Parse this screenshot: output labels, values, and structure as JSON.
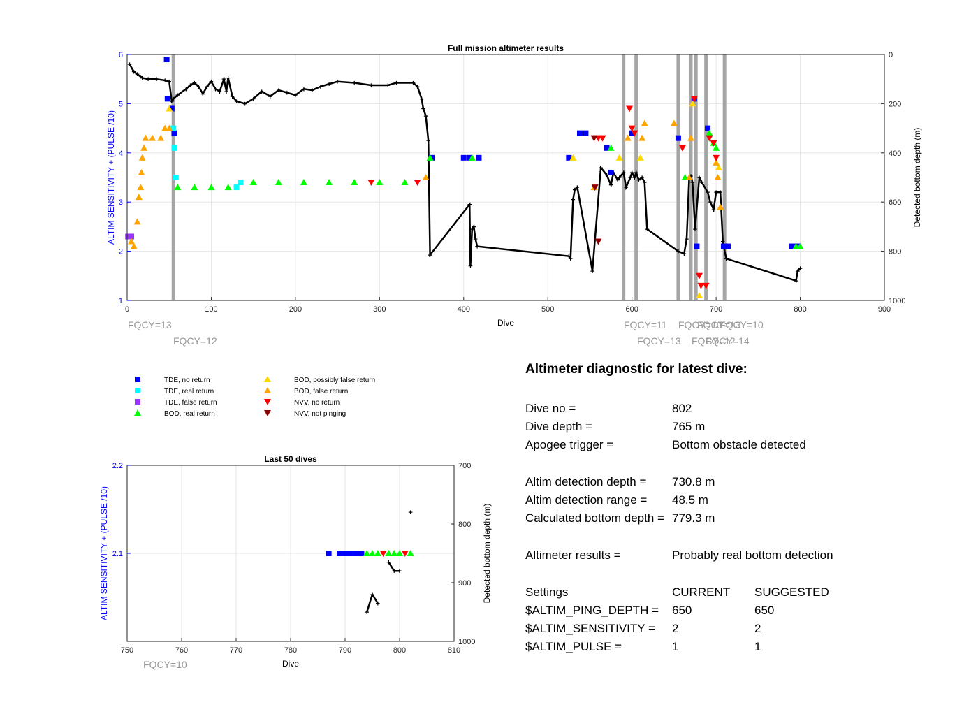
{
  "colors": {
    "left_axis": "#0000ff",
    "fqcy_label": "#999999",
    "vline": "#a6a6a6",
    "depth_line": "#000000",
    "tde_no_return": "#0000ff",
    "tde_real_return": "#00ffff",
    "tde_false_return": "#9933ff",
    "bod_real_return": "#00ff00",
    "bod_possibly_false": "#ffd700",
    "bod_false_return": "#ffa500",
    "nvv_no_return": "#ff0000",
    "nvv_not_pinging": "#8b0000"
  },
  "chart_data": [
    {
      "type": "scatter",
      "title": "Full mission altimeter results",
      "xlabel": "Dive",
      "ylabel": "ALTIM SENSITIVITY + (PULSE /10)",
      "y2label": "Detected bottom depth (m)",
      "xlim": [
        0,
        900
      ],
      "ylim": [
        1,
        6
      ],
      "y2lim": [
        1000,
        0
      ],
      "xticks": [
        0,
        100,
        200,
        300,
        400,
        500,
        600,
        700,
        800,
        900
      ],
      "yticks": [
        1,
        2,
        3,
        4,
        5,
        6
      ],
      "y2ticks": [
        0,
        200,
        400,
        600,
        800,
        1000
      ],
      "grid": true,
      "settings_changes": [
        {
          "x": 55,
          "label": "FQCY=13"
        },
        {
          "x": 55,
          "label": "FQCY=12"
        },
        {
          "x": 590,
          "label": "FQCY=11"
        },
        {
          "x": 605,
          "label": "FQCY=13"
        },
        {
          "x": 655,
          "label": "FQCY=10"
        },
        {
          "x": 670,
          "label": "FQCY=12"
        },
        {
          "x": 688,
          "label": "FQCY=13"
        },
        {
          "x": 710,
          "label": "FQCY=14"
        },
        {
          "x": 697,
          "label": "FQCY=10"
        }
      ],
      "vlines": [
        55,
        590,
        605,
        655,
        670,
        676,
        688,
        710
      ],
      "series": [
        {
          "name": "TDE, no return",
          "marker": "square",
          "points": [
            [
              47,
              5.9
            ],
            [
              48,
              5.1
            ],
            [
              53,
              4.9
            ],
            [
              56,
              4.4
            ],
            [
              400,
              3.9
            ],
            [
              407,
              3.9
            ],
            [
              418,
              3.9
            ],
            [
              362,
              3.9
            ],
            [
              525,
              3.9
            ],
            [
              538,
              4.4
            ],
            [
              545,
              4.4
            ],
            [
              570,
              4.1
            ],
            [
              575,
              3.6
            ],
            [
              600,
              4.4
            ],
            [
              655,
              4.3
            ],
            [
              674,
              5.1
            ],
            [
              677,
              2.1
            ],
            [
              690,
              4.5
            ],
            [
              709,
              2.1
            ],
            [
              714,
              2.1
            ],
            [
              790,
              2.1
            ],
            [
              795,
              2.1
            ],
            [
              797,
              2.1
            ]
          ]
        },
        {
          "name": "TDE, real return",
          "marker": "square",
          "points": [
            [
              55,
              4.5
            ],
            [
              56,
              4.1
            ],
            [
              58,
              3.5
            ],
            [
              130,
              3.3
            ],
            [
              135,
              3.4
            ]
          ]
        },
        {
          "name": "TDE, false return",
          "marker": "square",
          "points": [
            [
              1,
              2.3
            ],
            [
              5,
              2.3
            ]
          ]
        },
        {
          "name": "BOD, real return",
          "marker": "triangle-up",
          "points": [
            [
              60,
              3.3
            ],
            [
              80,
              3.3
            ],
            [
              100,
              3.3
            ],
            [
              120,
              3.3
            ],
            [
              150,
              3.4
            ],
            [
              180,
              3.4
            ],
            [
              210,
              3.4
            ],
            [
              240,
              3.4
            ],
            [
              270,
              3.4
            ],
            [
              300,
              3.4
            ],
            [
              330,
              3.4
            ],
            [
              360,
              3.9
            ],
            [
              410,
              3.9
            ],
            [
              575,
              4.1
            ],
            [
              663,
              3.5
            ],
            [
              692,
              4.4
            ],
            [
              697,
              4.2
            ],
            [
              700,
              4.1
            ],
            [
              795,
              2.1
            ],
            [
              800,
              2.1
            ]
          ]
        },
        {
          "name": "BOD, possibly false return",
          "marker": "triangle-up",
          "points": [
            [
              50,
              4.9
            ],
            [
              530,
              3.9
            ],
            [
              585,
              3.9
            ],
            [
              610,
              3.9
            ],
            [
              672,
              5.0
            ],
            [
              703,
              3.7
            ],
            [
              680,
              1.1
            ]
          ]
        },
        {
          "name": "BOD, false return",
          "marker": "triangle-up",
          "points": [
            [
              5,
              2.2
            ],
            [
              8,
              2.1
            ],
            [
              12,
              2.6
            ],
            [
              14,
              3.1
            ],
            [
              16,
              3.3
            ],
            [
              17,
              3.6
            ],
            [
              18,
              3.9
            ],
            [
              20,
              4.1
            ],
            [
              22,
              4.3
            ],
            [
              30,
              4.3
            ],
            [
              40,
              4.3
            ],
            [
              45,
              4.5
            ],
            [
              50,
              4.5
            ],
            [
              355,
              3.5
            ],
            [
              555,
              3.3
            ],
            [
              595,
              4.3
            ],
            [
              612,
              4.3
            ],
            [
              615,
              4.6
            ],
            [
              650,
              4.6
            ],
            [
              668,
              3.5
            ],
            [
              670,
              4.3
            ],
            [
              700,
              3.8
            ],
            [
              705,
              2.9
            ],
            [
              702,
              3.5
            ]
          ]
        },
        {
          "name": "NVV, no return",
          "marker": "triangle-down",
          "points": [
            [
              290,
              3.4
            ],
            [
              345,
              3.4
            ],
            [
              560,
              4.3
            ],
            [
              565,
              4.3
            ],
            [
              597,
              4.9
            ],
            [
              600,
              4.5
            ],
            [
              603,
              4.4
            ],
            [
              660,
              4.1
            ],
            [
              674,
              5.1
            ],
            [
              680,
              1.5
            ],
            [
              682,
              1.3
            ],
            [
              688,
              1.3
            ],
            [
              692,
              4.3
            ],
            [
              697,
              4.2
            ],
            [
              700,
              3.9
            ]
          ]
        },
        {
          "name": "NVV, not pinging",
          "marker": "triangle-down",
          "points": [
            [
              555,
              4.3
            ],
            [
              560,
              2.2
            ],
            [
              556,
              3.3
            ]
          ]
        }
      ],
      "bottom_depth": [
        [
          3,
          40
        ],
        [
          8,
          70
        ],
        [
          12,
          80
        ],
        [
          18,
          95
        ],
        [
          25,
          100
        ],
        [
          35,
          100
        ],
        [
          45,
          105
        ],
        [
          50,
          110
        ],
        [
          53,
          190
        ],
        [
          55,
          180
        ],
        [
          60,
          165
        ],
        [
          70,
          140
        ],
        [
          75,
          125
        ],
        [
          80,
          115
        ],
        [
          85,
          130
        ],
        [
          90,
          160
        ],
        [
          95,
          130
        ],
        [
          100,
          110
        ],
        [
          105,
          140
        ],
        [
          110,
          150
        ],
        [
          115,
          100
        ],
        [
          118,
          150
        ],
        [
          120,
          95
        ],
        [
          125,
          170
        ],
        [
          130,
          190
        ],
        [
          140,
          200
        ],
        [
          150,
          180
        ],
        [
          160,
          150
        ],
        [
          170,
          170
        ],
        [
          180,
          145
        ],
        [
          190,
          155
        ],
        [
          200,
          165
        ],
        [
          210,
          140
        ],
        [
          220,
          145
        ],
        [
          230,
          130
        ],
        [
          240,
          120
        ],
        [
          250,
          110
        ],
        [
          270,
          115
        ],
        [
          290,
          125
        ],
        [
          310,
          125
        ],
        [
          320,
          115
        ],
        [
          340,
          115
        ],
        [
          345,
          130
        ],
        [
          350,
          180
        ],
        [
          352,
          220
        ],
        [
          355,
          250
        ],
        [
          358,
          350
        ],
        [
          360,
          815
        ],
        [
          407,
          610
        ],
        [
          408,
          860
        ],
        [
          410,
          710
        ],
        [
          412,
          700
        ],
        [
          414,
          750
        ],
        [
          416,
          780
        ],
        [
          525,
          820
        ],
        [
          527,
          830
        ],
        [
          530,
          590
        ],
        [
          532,
          550
        ],
        [
          535,
          540
        ],
        [
          553,
          880
        ],
        [
          563,
          460
        ],
        [
          570,
          490
        ],
        [
          575,
          530
        ],
        [
          578,
          480
        ],
        [
          583,
          510
        ],
        [
          585,
          500
        ],
        [
          590,
          480
        ],
        [
          593,
          540
        ],
        [
          598,
          500
        ],
        [
          600,
          480
        ],
        [
          603,
          500
        ],
        [
          605,
          480
        ],
        [
          608,
          510
        ],
        [
          612,
          500
        ],
        [
          615,
          520
        ],
        [
          618,
          710
        ],
        [
          655,
          800
        ],
        [
          662,
          810
        ],
        [
          665,
          750
        ],
        [
          668,
          500
        ],
        [
          670,
          495
        ],
        [
          672,
          520
        ],
        [
          675,
          710
        ],
        [
          680,
          500
        ],
        [
          683,
          520
        ],
        [
          690,
          560
        ],
        [
          693,
          600
        ],
        [
          697,
          630
        ],
        [
          700,
          560
        ],
        [
          705,
          560
        ],
        [
          708,
          760
        ],
        [
          712,
          830
        ],
        [
          795,
          920
        ],
        [
          797,
          880
        ],
        [
          800,
          870
        ]
      ]
    },
    {
      "type": "scatter",
      "title": "Last 50 dives",
      "xlabel": "Dive",
      "ylabel": "ALTIM SENSITIVITY + (PULSE /10)",
      "y2label": "Detected bottom depth (m)",
      "xlim": [
        750,
        810
      ],
      "ylim": [
        2.0,
        2.2
      ],
      "y2lim": [
        1000,
        700
      ],
      "xticks": [
        750,
        760,
        770,
        780,
        790,
        800,
        810
      ],
      "yticks": [
        2.1,
        2.2
      ],
      "y2ticks": [
        700,
        800,
        900,
        1000
      ],
      "grid": true,
      "settings_changes": [
        {
          "x": 750,
          "label": "FQCY=10"
        }
      ],
      "series": [
        {
          "name": "TDE, no return",
          "marker": "square",
          "points": [
            [
              787,
              2.1
            ],
            [
              789,
              2.1
            ],
            [
              790,
              2.1
            ],
            [
              791,
              2.1
            ],
            [
              792,
              2.1
            ],
            [
              793,
              2.1
            ]
          ]
        },
        {
          "name": "BOD, real return",
          "marker": "triangle-up",
          "points": [
            [
              794,
              2.1
            ],
            [
              795,
              2.1
            ],
            [
              796,
              2.1
            ],
            [
              798,
              2.1
            ],
            [
              799,
              2.1
            ],
            [
              800,
              2.1
            ],
            [
              802,
              2.1
            ]
          ]
        },
        {
          "name": "NVV, no return",
          "marker": "triangle-down",
          "points": [
            [
              797,
              2.1
            ],
            [
              801,
              2.1
            ]
          ]
        }
      ],
      "bottom_depth_segments": [
        [
          [
            794,
            950
          ],
          [
            795,
            920
          ],
          [
            796,
            935
          ]
        ],
        [
          [
            798,
            865
          ],
          [
            799,
            880
          ],
          [
            800,
            880
          ]
        ]
      ],
      "bottom_depth_extra": [
        [
          802,
          780
        ]
      ]
    }
  ],
  "legend": [
    {
      "label": "TDE, no return",
      "marker": "square",
      "color": "#0000ff"
    },
    {
      "label": "TDE, real return",
      "marker": "square",
      "color": "#00ffff"
    },
    {
      "label": "TDE, false return",
      "marker": "square",
      "color": "#9933ff"
    },
    {
      "label": "BOD, real return",
      "marker": "triangle-up",
      "color": "#00ff00"
    },
    {
      "label": "BOD, possibly false return",
      "marker": "triangle-up",
      "color": "#ffd700"
    },
    {
      "label": "BOD, false return",
      "marker": "triangle-up",
      "color": "#ffa500"
    },
    {
      "label": "NVV, no return",
      "marker": "triangle-down",
      "color": "#ff0000"
    },
    {
      "label": "NVV, not pinging",
      "marker": "triangle-down",
      "color": "#8b0000"
    }
  ],
  "diagnostic": {
    "title": "Altimeter diagnostic for latest dive:",
    "dive_no_label": "Dive no =",
    "dive_no": "802",
    "dive_depth_label": "Dive depth =",
    "dive_depth": "765 m",
    "apogee_label": "Apogee trigger =",
    "apogee": "Bottom obstacle detected",
    "altim_depth_label": "Altim detection depth =",
    "altim_depth": "730.8 m",
    "altim_range_label": "Altim detection range =",
    "altim_range": "48.5 m",
    "calc_depth_label": "Calculated bottom depth =",
    "calc_depth": "779.3 m",
    "results_label": "Altimeter results =",
    "results": "Probably real bottom detection",
    "settings_label": "Settings",
    "current_label": "CURRENT",
    "suggested_label": "SUGGESTED",
    "settings": [
      {
        "name": "$ALTIM_PING_DEPTH =",
        "current": "650",
        "suggested": "650"
      },
      {
        "name": "$ALTIM_SENSITIVITY =",
        "current": "2",
        "suggested": "2"
      },
      {
        "name": "$ALTIM_PULSE =",
        "current": "1",
        "suggested": "1"
      }
    ]
  }
}
